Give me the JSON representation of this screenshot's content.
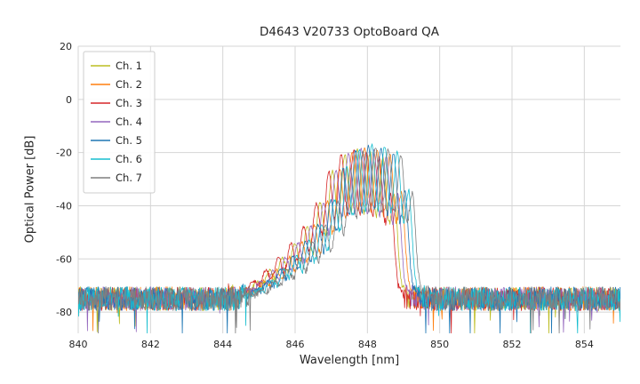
{
  "figure": {
    "background": "#ffffff",
    "text_color": "#262626"
  },
  "chart_data": {
    "type": "line",
    "title": "D4643 V20733 OptoBoard QA",
    "xlabel": "Wavelength [nm]",
    "ylabel": "Optical Power [dB]",
    "xlim": [
      840,
      855
    ],
    "ylim": [
      -88,
      20
    ],
    "xticks": [
      840,
      842,
      844,
      846,
      848,
      850,
      852,
      854
    ],
    "yticks": [
      20,
      0,
      -20,
      -40,
      -60,
      -80
    ],
    "grid": true,
    "grid_color": "#d5d5d5",
    "text_color": "#262626",
    "legend_position": "upper-left",
    "series": [
      {
        "name": "Ch. 1",
        "color": "#bcbd22",
        "center_nm": 847.55,
        "peak_db": -19.0
      },
      {
        "name": "Ch. 2",
        "color": "#ff7f0e",
        "center_nm": 847.75,
        "peak_db": -18.0
      },
      {
        "name": "Ch. 3",
        "color": "#d62728",
        "center_nm": 847.45,
        "peak_db": -19.0
      },
      {
        "name": "Ch. 4",
        "color": "#9467bd",
        "center_nm": 847.65,
        "peak_db": -18.5
      },
      {
        "name": "Ch. 5",
        "color": "#1f77b4",
        "center_nm": 847.85,
        "peak_db": -17.5
      },
      {
        "name": "Ch. 6",
        "color": "#17becf",
        "center_nm": 847.95,
        "peak_db": -17.0
      },
      {
        "name": "Ch. 7",
        "color": "#7f7f7f",
        "center_nm": 848.05,
        "peak_db": -18.0
      }
    ],
    "spectrum_model": {
      "comment": "Estimated spectral envelope read off the plot; each channel is this envelope shifted to its center wavelength with Fabry-Perot mode modulation and a noisy floor.",
      "envelope_center_nm": 847.8,
      "envelope_points": [
        [
          840.0,
          -75
        ],
        [
          844.3,
          -75
        ],
        [
          844.9,
          -71
        ],
        [
          845.3,
          -67
        ],
        [
          845.7,
          -62
        ],
        [
          846.1,
          -56
        ],
        [
          846.5,
          -49
        ],
        [
          846.8,
          -43
        ],
        [
          847.0,
          -36
        ],
        [
          847.2,
          -28
        ],
        [
          847.5,
          -21
        ],
        [
          847.8,
          -18
        ],
        [
          848.1,
          -18
        ],
        [
          848.4,
          -19
        ],
        [
          848.7,
          -21
        ],
        [
          848.9,
          -26
        ],
        [
          849.0,
          -34
        ],
        [
          849.1,
          -50
        ],
        [
          849.2,
          -66
        ],
        [
          849.35,
          -74
        ],
        [
          849.6,
          -75
        ],
        [
          855.0,
          -75
        ]
      ],
      "mode_spacing_nm": 0.35,
      "mode_depth_factor": 0.42,
      "mode_depth_max_db": 26,
      "noise_floor_db": -75,
      "noise_floor_amplitude_db": 4.5,
      "noise_spike_probability": 0.012,
      "noise_spike_max_db": 13,
      "signal_noise_amplitude_db": 1.0
    }
  }
}
